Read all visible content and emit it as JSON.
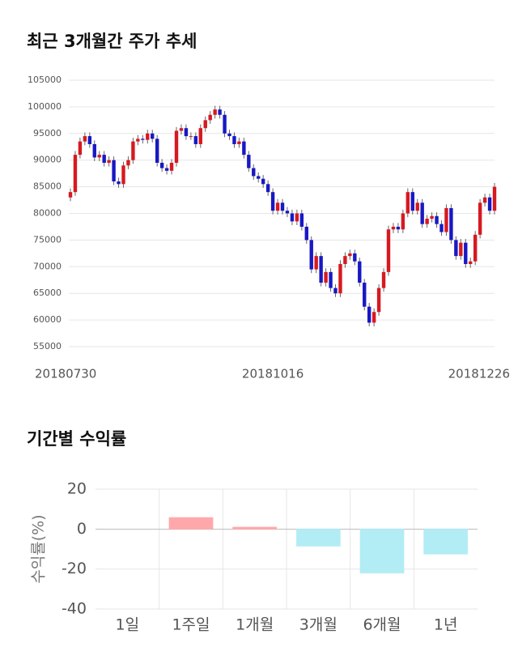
{
  "chart_data": [
    {
      "type": "candlestick",
      "title": "최근 3개월간 주가 추세",
      "categories": [
        "20180730",
        null,
        null,
        null,
        null,
        null,
        null,
        null,
        null,
        null,
        null,
        null,
        null,
        null,
        null,
        null,
        null,
        null,
        null,
        null,
        null,
        null,
        null,
        null,
        null,
        null,
        null,
        null,
        null,
        null,
        null,
        null,
        null,
        null,
        null,
        null,
        null,
        null,
        null,
        null,
        null,
        null,
        "20181016",
        null,
        null,
        null,
        null,
        null,
        null,
        null,
        null,
        null,
        null,
        null,
        null,
        null,
        null,
        null,
        null,
        null,
        null,
        null,
        null,
        null,
        null,
        null,
        null,
        null,
        null,
        null,
        null,
        null,
        null,
        null,
        null,
        null,
        null,
        null,
        null,
        null,
        null,
        null,
        null,
        null,
        null,
        null,
        null,
        null,
        "20181226"
      ],
      "open": [
        83000,
        84000,
        91000,
        93500,
        94500,
        93000,
        90500,
        91000,
        89500,
        90000,
        86000,
        85500,
        89000,
        90000,
        93500,
        94000,
        93800,
        95000,
        94000,
        89500,
        88500,
        88000,
        89500,
        95500,
        96000,
        94500,
        94500,
        93000,
        96000,
        97500,
        98500,
        99500,
        98500,
        95000,
        94500,
        93000,
        93500,
        91000,
        88500,
        87000,
        86500,
        85500,
        84000,
        80500,
        82000,
        80500,
        80000,
        78500,
        80000,
        77500,
        75000,
        69500,
        72000,
        67000,
        69000,
        66000,
        65000,
        70500,
        72000,
        72500,
        71000,
        67000,
        62500,
        59500,
        61500,
        66000,
        69000,
        77000,
        77500,
        77000,
        80000,
        84000,
        80500,
        82000,
        78000,
        79000,
        79500,
        78000,
        76500,
        81000,
        75000,
        72000,
        74500,
        70500,
        71000,
        76000,
        82000,
        83000,
        80500
      ],
      "high": [
        84700,
        91700,
        94200,
        95200,
        95200,
        93700,
        91700,
        91700,
        90700,
        90700,
        86700,
        89700,
        90700,
        94200,
        94700,
        94700,
        95700,
        95700,
        94700,
        90200,
        89200,
        90200,
        96200,
        96700,
        96700,
        95200,
        95200,
        96700,
        98200,
        99200,
        100200,
        100200,
        99200,
        95700,
        95200,
        94200,
        94200,
        91700,
        89200,
        87700,
        87200,
        86200,
        84700,
        82700,
        82700,
        81200,
        80700,
        80700,
        80700,
        78200,
        75700,
        72700,
        72700,
        69700,
        69700,
        66700,
        71200,
        72700,
        73200,
        73200,
        71700,
        67700,
        63200,
        62200,
        66700,
        69700,
        77700,
        78200,
        78200,
        80700,
        84700,
        84700,
        82700,
        82700,
        79700,
        80200,
        80200,
        78700,
        81700,
        81700,
        75700,
        75200,
        75200,
        71700,
        76700,
        82700,
        83700,
        83700,
        85700
      ],
      "low": [
        82300,
        83300,
        90300,
        92800,
        92300,
        89800,
        89800,
        88800,
        88800,
        85300,
        84800,
        84800,
        88300,
        89300,
        92800,
        93100,
        93100,
        93300,
        88800,
        87800,
        87300,
        87300,
        88800,
        94800,
        93800,
        93800,
        92300,
        92300,
        95300,
        96800,
        97800,
        97800,
        94300,
        93800,
        92300,
        92300,
        90300,
        87800,
        86300,
        85800,
        84800,
        83300,
        79800,
        79800,
        79800,
        79300,
        77800,
        77800,
        76800,
        74300,
        68800,
        68800,
        66300,
        66300,
        65300,
        64300,
        64300,
        69800,
        71300,
        70300,
        66300,
        61800,
        58800,
        58800,
        60800,
        65300,
        68300,
        76300,
        76300,
        76300,
        79300,
        79800,
        79800,
        77300,
        77300,
        78300,
        77300,
        75800,
        75800,
        74300,
        71300,
        71300,
        69800,
        69800,
        70300,
        75300,
        81300,
        79800,
        79800
      ],
      "close": [
        84000,
        91000,
        93500,
        94500,
        93000,
        90500,
        91000,
        89500,
        90000,
        86000,
        85500,
        89000,
        90000,
        93500,
        94000,
        93800,
        95000,
        94000,
        89500,
        88500,
        88000,
        89500,
        95500,
        96000,
        94500,
        94500,
        93000,
        96000,
        97500,
        98500,
        99500,
        98500,
        95000,
        94500,
        93000,
        93500,
        91000,
        88500,
        87000,
        86500,
        85500,
        84000,
        80500,
        82000,
        80500,
        80000,
        78500,
        80000,
        77500,
        75000,
        69500,
        72000,
        67000,
        69000,
        66000,
        65000,
        70500,
        72000,
        72500,
        71000,
        67000,
        62500,
        59500,
        61500,
        66000,
        69000,
        77000,
        77500,
        77000,
        80000,
        84000,
        80500,
        82000,
        78000,
        79000,
        79500,
        78000,
        76500,
        81000,
        75000,
        72000,
        74500,
        70500,
        71000,
        76000,
        82000,
        83000,
        80500,
        85000
      ],
      "up_color": "#d71920",
      "down_color": "#1818c4",
      "wick_color": "#666666",
      "ylim": [
        55000,
        105000
      ],
      "yticks": [
        55000,
        60000,
        65000,
        70000,
        75000,
        80000,
        85000,
        90000,
        95000,
        100000,
        105000
      ],
      "grid": true
    },
    {
      "type": "bar",
      "title": "기간별 수익률",
      "ylabel": "수익률(%)",
      "categories": [
        "1일",
        "1주일",
        "1개월",
        "3개월",
        "6개월",
        "1년"
      ],
      "values": [
        0,
        5.8,
        1.0,
        -8.5,
        -22,
        -12.5
      ],
      "colors": [
        "#ffa8ab",
        "#ffa8ab",
        "#ffa8ab",
        "#b2ecf5",
        "#b2ecf5",
        "#b2ecf5"
      ],
      "ylim": [
        -40,
        20
      ],
      "yticks": [
        -40,
        -20,
        0,
        20
      ],
      "grid": true
    }
  ]
}
